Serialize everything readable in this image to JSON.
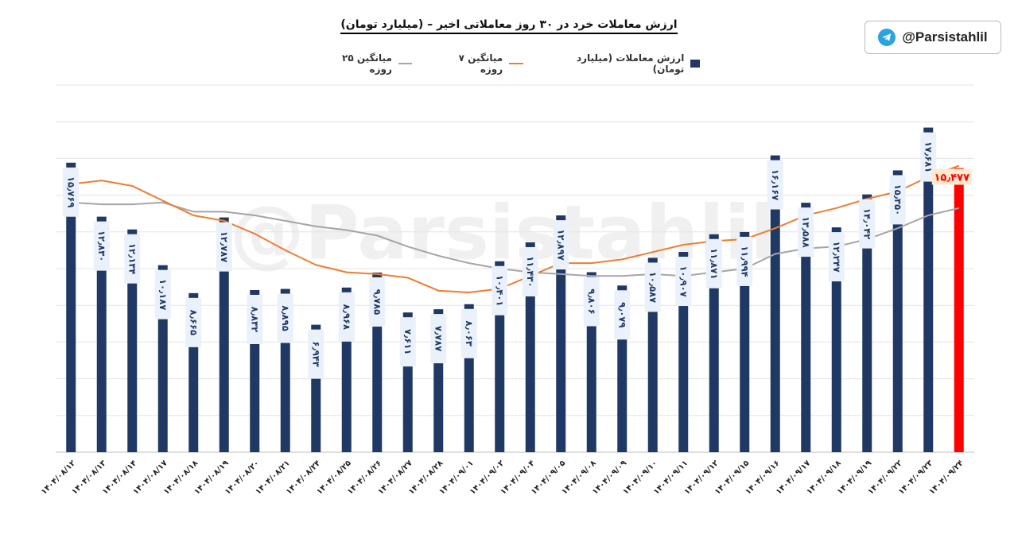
{
  "header": {
    "title": "ارزش معاملات خرد در ۳۰ روز معاملاتی اخیر – (میلیارد تومان)"
  },
  "badge": {
    "handle": "@Parsistahlil",
    "icon": "telegram-icon"
  },
  "watermark": "@Parsistahlil",
  "colors": {
    "bar": "#1f3864",
    "bar_highlight": "#ff0000",
    "ma7": "#ed7d31",
    "ma25": "#a5a5a5",
    "label_bg": "#eaf1fb",
    "highlight_label_bg": "#fdebd0"
  },
  "chart_data": {
    "type": "bar",
    "title": "ارزش معاملات خرد در ۳۰ روز معاملاتی اخیر – (میلیارد تومان)",
    "categories": [
      "۱۴۰۴/۰۸/۱۲",
      "۱۴۰۴/۰۸/۱۳",
      "۱۴۰۴/۰۸/۱۴",
      "۱۴۰۴/۰۸/۱۷",
      "۱۴۰۴/۰۸/۱۸",
      "۱۴۰۴/۰۸/۱۹",
      "۱۴۰۴/۰۸/۲۰",
      "۱۴۰۴/۰۸/۲۱",
      "۱۴۰۴/۰۸/۲۴",
      "۱۴۰۴/۰۸/۲۵",
      "۱۴۰۴/۰۸/۲۶",
      "۱۴۰۴/۰۸/۲۷",
      "۱۴۰۴/۰۸/۲۸",
      "۱۴۰۴/۰۹/۰۱",
      "۱۴۰۴/۰۹/۰۲",
      "۱۴۰۴/۰۹/۰۴",
      "۱۴۰۴/۰۹/۰۵",
      "۱۴۰۴/۰۹/۰۸",
      "۱۴۰۴/۰۹/۰۹",
      "۱۴۰۴/۰۹/۱۰",
      "۱۴۰۴/۰۹/۱۱",
      "۱۴۰۴/۰۹/۱۲",
      "۱۴۰۴/۰۹/۱۵",
      "۱۴۰۴/۰۹/۱۶",
      "۱۴۰۴/۰۹/۱۷",
      "۱۴۰۴/۰۹/۱۸",
      "۱۴۰۴/۰۹/۱۹",
      "۱۴۰۴/۰۹/۲۲",
      "۱۴۰۴/۰۹/۲۳",
      "۱۴۰۴/۰۹/۲۴"
    ],
    "ylim": [
      0,
      20
    ],
    "grid": true,
    "legend_position": "top",
    "series": [
      {
        "name": "ارزش معاملات (میلیارد تومان)",
        "type": "bar",
        "values": [
          15.769,
          12.83,
          12.134,
          10.187,
          8.665,
          12.787,
          8.832,
          8.895,
          6.943,
          8.968,
          9.785,
          7.611,
          7.787,
          8.063,
          10.401,
          11.43,
          12.897,
          9.806,
          9.079,
          10.587,
          10.907,
          11.871,
          11.994,
          16.167,
          13.588,
          12.247,
          14.042,
          15.35,
          17.681,
          15.477
        ],
        "labels": [
          "۱۵٫۷۶۹",
          "۱۲٫۸۳۰",
          "۱۲٫۱۳۴",
          "۱۰٫۱۸۷",
          "۸٫۶۶۵",
          "۱۲٫۷۸۷",
          "۸٫۸۳۲",
          "۸٫۸۹۵",
          "۶٫۹۴۳",
          "۸٫۹۶۸",
          "۹٫۷۸۵",
          "۷٫۶۱۱",
          "۷٫۷۸۷",
          "۸٫۰۶۳",
          "۱۰٫۴۰۱",
          "۱۱٫۴۳۰",
          "۱۲٫۸۹۷",
          "۹٫۸۰۶",
          "۹٫۰۷۹",
          "۱۰٫۵۸۷",
          "۱۰٫۹۰۷",
          "۱۱٫۸۷۱",
          "۱۱٫۹۹۴",
          "۱۶٫۱۶۷",
          "۱۳٫۵۸۸",
          "۱۲٫۲۴۷",
          "۱۴٫۰۴۲",
          "۱۵٫۳۵۰",
          "۱۷٫۶۸۱",
          "۱۵٫۴۷۷"
        ],
        "highlight_last": true
      },
      {
        "name": "میانگین ۷ روزه",
        "type": "line",
        "values": [
          14.6,
          14.8,
          14.5,
          13.7,
          12.9,
          12.6,
          11.9,
          11.0,
          10.2,
          9.8,
          9.7,
          9.5,
          8.8,
          8.7,
          8.9,
          9.6,
          10.3,
          10.3,
          10.5,
          10.9,
          11.3,
          11.5,
          11.6,
          12.2,
          12.9,
          13.3,
          13.8,
          14.2,
          15.0,
          15.6
        ]
      },
      {
        "name": "میانگین ۲۵ روزه",
        "type": "line",
        "values": [
          13.6,
          13.5,
          13.5,
          13.6,
          13.1,
          13.1,
          12.9,
          12.6,
          12.3,
          12.1,
          11.8,
          11.2,
          10.7,
          10.3,
          10.0,
          9.8,
          9.7,
          9.6,
          9.6,
          9.7,
          9.6,
          9.8,
          10.0,
          10.8,
          11.1,
          11.2,
          11.6,
          12.2,
          12.9,
          13.3
        ]
      }
    ]
  }
}
